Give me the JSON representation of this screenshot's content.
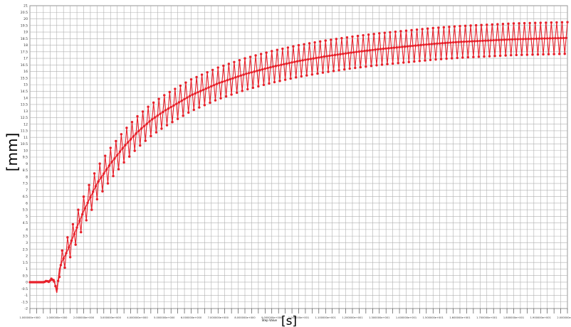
{
  "chart_data": {
    "type": "line",
    "xlabel": "[s]",
    "ylabel": "[mm]",
    "xaxis_title": "Step Value",
    "ylim": [
      -2,
      21
    ],
    "xlim": [
      0,
      20
    ],
    "grid": true,
    "y_ticks": [
      -2,
      -1.5,
      -1,
      -0.5,
      0,
      0.5,
      1,
      1.5,
      2,
      2.5,
      3,
      3.5,
      4,
      4.5,
      5,
      5.5,
      6,
      6.5,
      7,
      7.5,
      8,
      8.5,
      9,
      9.5,
      10,
      10.5,
      11,
      11.5,
      12,
      12.5,
      13,
      13.5,
      14,
      14.5,
      15,
      15.5,
      16,
      16.5,
      17,
      17.5,
      18,
      18.5,
      19,
      19.5,
      20,
      20.5,
      21
    ],
    "x_tick_labels": [
      "1.000000e+000",
      "1.000000e+000",
      "2.000000e+000",
      "3.000000e+000",
      "4.000000e+000",
      "5.000000e+000",
      "6.000000e+000",
      "7.000000e+000",
      "8.000000e+000",
      "9.000000e+000",
      "1.000000e+001",
      "1.100000e+001",
      "1.200000e+001",
      "1.300000e+001",
      "1.400000e+001",
      "1.500000e+001",
      "1.600000e+001",
      "1.700000e+001",
      "1.800000e+001",
      "1.900000e+001",
      "2.000000e+001"
    ],
    "color": "#e8202a",
    "series": [
      {
        "name": "",
        "x": [
          0,
          0.5,
          0.9,
          1.0,
          1.1,
          1.2,
          1.4,
          1.6,
          1.8,
          2.0,
          2.5,
          3.0,
          3.5,
          4.0,
          4.5,
          5.0,
          6.0,
          7.0,
          8.0,
          9.0,
          10.0,
          11.0,
          12.0,
          13.0,
          14.0,
          15.0,
          16.0,
          17.0,
          18.0,
          19.0,
          20.0
        ],
        "y": [
          0,
          0,
          0.2,
          -0.8,
          1.0,
          1.6,
          2.4,
          3.4,
          4.4,
          5.4,
          7.5,
          9.0,
          10.3,
          11.4,
          12.3,
          13.0,
          14.2,
          15.1,
          15.8,
          16.35,
          16.8,
          17.15,
          17.45,
          17.7,
          17.9,
          18.1,
          18.25,
          18.35,
          18.45,
          18.5,
          18.55
        ],
        "oscillation_amplitude": [
          0,
          0,
          0.15,
          0.3,
          0.6,
          0.8,
          1.0,
          1.0,
          1.1,
          1.1,
          1.2,
          1.2,
          1.2,
          1.2,
          1.2,
          1.2,
          1.2,
          1.2,
          1.2,
          1.2,
          1.2,
          1.2,
          1.2,
          1.2,
          1.2,
          1.2,
          1.2,
          1.2,
          1.2,
          1.2,
          1.2
        ]
      }
    ]
  }
}
